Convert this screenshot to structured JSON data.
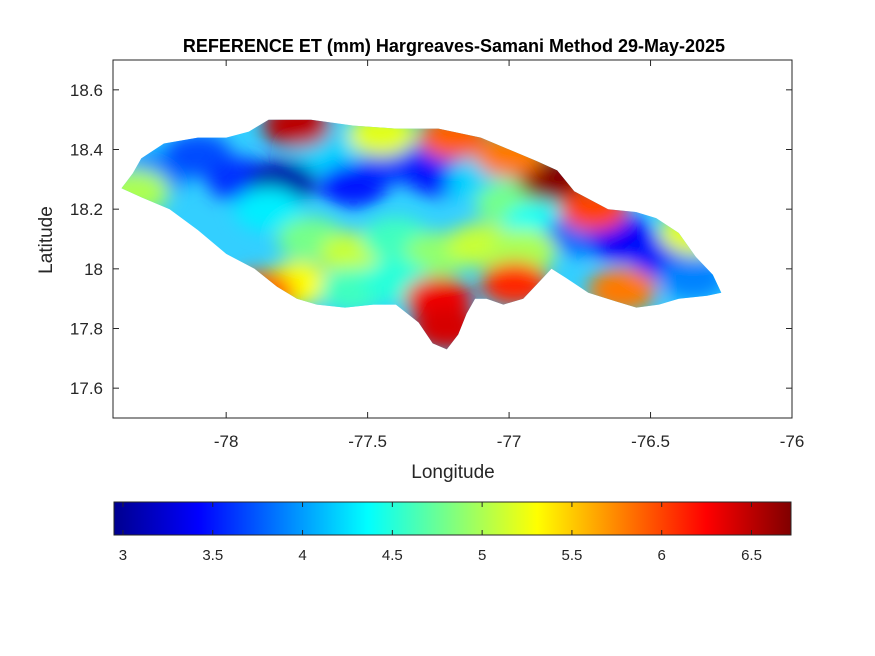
{
  "chart_data": {
    "type": "heatmap",
    "title": "REFERENCE ET (mm) Hargreaves-Samani Method  29-May-2025",
    "xlabel": "Longitude",
    "ylabel": "Latitude",
    "xlim": [
      -78.4,
      -76
    ],
    "ylim": [
      17.5,
      18.7
    ],
    "x_ticks": [
      -78,
      -77.5,
      -77,
      -76.5,
      -76
    ],
    "x_tick_labels": [
      "-78",
      "-77.5",
      "-77",
      "-76.5",
      "-76"
    ],
    "y_ticks": [
      17.6,
      17.8,
      18,
      18.2,
      18.4,
      18.6
    ],
    "y_tick_labels": [
      "17.6",
      "17.8",
      "18",
      "18.2",
      "18.4",
      "18.6"
    ],
    "colormap": "jet",
    "colorbar": {
      "placement": "bottom",
      "range": [
        2.95,
        6.72
      ],
      "ticks": [
        3,
        3.5,
        4,
        4.5,
        5,
        5.5,
        6,
        6.5
      ],
      "tick_labels": [
        "3",
        "3.5",
        "4",
        "4.5",
        "5",
        "5.5",
        "6",
        "6.5"
      ]
    },
    "grid": false,
    "outline": [
      [
        -78.37,
        18.27
      ],
      [
        -78.33,
        18.32
      ],
      [
        -78.3,
        18.37
      ],
      [
        -78.22,
        18.42
      ],
      [
        -78.1,
        18.44
      ],
      [
        -78.0,
        18.44
      ],
      [
        -77.92,
        18.46
      ],
      [
        -77.85,
        18.5
      ],
      [
        -77.7,
        18.5
      ],
      [
        -77.55,
        18.48
      ],
      [
        -77.4,
        18.47
      ],
      [
        -77.25,
        18.47
      ],
      [
        -77.1,
        18.44
      ],
      [
        -77.0,
        18.4
      ],
      [
        -76.9,
        18.36
      ],
      [
        -76.83,
        18.33
      ],
      [
        -76.77,
        18.26
      ],
      [
        -76.65,
        18.2
      ],
      [
        -76.55,
        18.19
      ],
      [
        -76.48,
        18.17
      ],
      [
        -76.4,
        18.12
      ],
      [
        -76.34,
        18.04
      ],
      [
        -76.28,
        17.98
      ],
      [
        -76.25,
        17.92
      ],
      [
        -76.3,
        17.91
      ],
      [
        -76.4,
        17.9
      ],
      [
        -76.47,
        17.88
      ],
      [
        -76.55,
        17.87
      ],
      [
        -76.62,
        17.89
      ],
      [
        -76.72,
        17.92
      ],
      [
        -76.8,
        17.97
      ],
      [
        -76.85,
        18.0
      ],
      [
        -76.9,
        17.95
      ],
      [
        -76.95,
        17.9
      ],
      [
        -77.02,
        17.88
      ],
      [
        -77.08,
        17.9
      ],
      [
        -77.12,
        17.9
      ],
      [
        -77.15,
        17.85
      ],
      [
        -77.18,
        17.78
      ],
      [
        -77.22,
        17.73
      ],
      [
        -77.27,
        17.75
      ],
      [
        -77.32,
        17.82
      ],
      [
        -77.4,
        17.88
      ],
      [
        -77.48,
        17.88
      ],
      [
        -77.58,
        17.87
      ],
      [
        -77.68,
        17.88
      ],
      [
        -77.75,
        17.9
      ],
      [
        -77.82,
        17.94
      ],
      [
        -77.9,
        18.0
      ],
      [
        -78.0,
        18.05
      ],
      [
        -78.1,
        18.13
      ],
      [
        -78.2,
        18.2
      ],
      [
        -78.3,
        18.24
      ],
      [
        -78.37,
        18.27
      ]
    ],
    "value_field": [
      {
        "lon": -78.25,
        "lat": 18.32,
        "value": 3.9
      },
      {
        "lon": -78.1,
        "lat": 18.38,
        "value": 3.7
      },
      {
        "lon": -77.95,
        "lat": 18.3,
        "value": 3.6
      },
      {
        "lon": -77.8,
        "lat": 18.29,
        "value": 3.1
      },
      {
        "lon": -77.65,
        "lat": 18.4,
        "value": 4.2
      },
      {
        "lon": -77.55,
        "lat": 18.28,
        "value": 3.5
      },
      {
        "lon": -77.4,
        "lat": 18.36,
        "value": 3.6
      },
      {
        "lon": -77.25,
        "lat": 18.32,
        "value": 3.5
      },
      {
        "lon": -77.1,
        "lat": 18.3,
        "value": 4.2
      },
      {
        "lon": -77.0,
        "lat": 18.22,
        "value": 4.8
      },
      {
        "lon": -76.9,
        "lat": 18.15,
        "value": 4.4
      },
      {
        "lon": -76.75,
        "lat": 18.12,
        "value": 3.8
      },
      {
        "lon": -76.6,
        "lat": 18.1,
        "value": 3.4
      },
      {
        "lon": -76.45,
        "lat": 18.04,
        "value": 3.5
      },
      {
        "lon": -76.35,
        "lat": 17.97,
        "value": 3.9
      },
      {
        "lon": -77.85,
        "lat": 18.2,
        "value": 4.3
      },
      {
        "lon": -77.7,
        "lat": 18.1,
        "value": 4.8
      },
      {
        "lon": -77.55,
        "lat": 18.05,
        "value": 5.1
      },
      {
        "lon": -77.4,
        "lat": 18.1,
        "value": 4.6
      },
      {
        "lon": -77.25,
        "lat": 18.05,
        "value": 4.9
      },
      {
        "lon": -77.1,
        "lat": 18.08,
        "value": 5.1
      },
      {
        "lon": -76.95,
        "lat": 18.06,
        "value": 5.0
      },
      {
        "lon": -77.75,
        "lat": 17.95,
        "value": 5.3
      },
      {
        "lon": -77.55,
        "lat": 17.93,
        "value": 4.6
      },
      {
        "lon": -77.4,
        "lat": 17.96,
        "value": 4.5
      },
      {
        "lon": -77.25,
        "lat": 17.9,
        "value": 6.3
      },
      {
        "lon": -77.22,
        "lat": 17.8,
        "value": 6.4
      },
      {
        "lon": -76.98,
        "lat": 17.95,
        "value": 6.1
      },
      {
        "lon": -76.6,
        "lat": 17.93,
        "value": 5.8
      },
      {
        "lon": -76.35,
        "lat": 18.12,
        "value": 5.2
      },
      {
        "lon": -76.85,
        "lat": 18.3,
        "value": 6.7
      },
      {
        "lon": -76.7,
        "lat": 18.2,
        "value": 6.0
      },
      {
        "lon": -77.0,
        "lat": 18.38,
        "value": 5.8
      },
      {
        "lon": -77.2,
        "lat": 18.44,
        "value": 5.9
      },
      {
        "lon": -77.45,
        "lat": 18.45,
        "value": 5.2
      },
      {
        "lon": -77.75,
        "lat": 18.48,
        "value": 6.5
      },
      {
        "lon": -77.88,
        "lat": 17.92,
        "value": 5.9
      },
      {
        "lon": -78.32,
        "lat": 18.26,
        "value": 5.0
      }
    ]
  },
  "colors": {
    "axis": "#262626",
    "box": "#262626",
    "background": "#ffffff"
  }
}
